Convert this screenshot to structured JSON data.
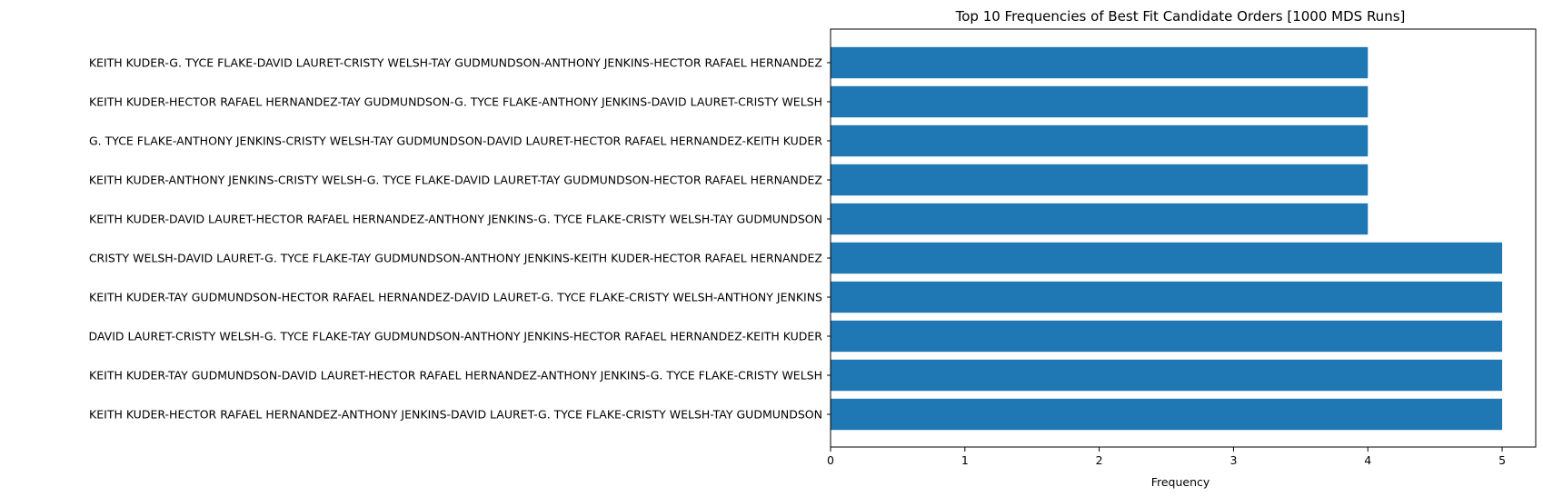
{
  "chart_data": {
    "type": "bar",
    "orientation": "horizontal",
    "title": "Top 10 Frequencies of Best Fit Candidate Orders [1000 MDS Runs]",
    "xlabel": "Frequency",
    "ylabel": "",
    "xlim": [
      0,
      5.25
    ],
    "xticks": [
      0,
      1,
      2,
      3,
      4,
      5
    ],
    "grid": false,
    "bar_color": "#1f77b4",
    "categories": [
      "KEITH KUDER-G. TYCE FLAKE-DAVID LAURET-CRISTY WELSH-TAY GUDMUNDSON-ANTHONY JENKINS-HECTOR RAFAEL HERNANDEZ",
      "KEITH KUDER-HECTOR RAFAEL HERNANDEZ-TAY GUDMUNDSON-G. TYCE FLAKE-ANTHONY JENKINS-DAVID LAURET-CRISTY WELSH",
      "G. TYCE FLAKE-ANTHONY JENKINS-CRISTY WELSH-TAY GUDMUNDSON-DAVID LAURET-HECTOR RAFAEL HERNANDEZ-KEITH KUDER",
      "KEITH KUDER-ANTHONY JENKINS-CRISTY WELSH-G. TYCE FLAKE-DAVID LAURET-TAY GUDMUNDSON-HECTOR RAFAEL HERNANDEZ",
      "KEITH KUDER-DAVID LAURET-HECTOR RAFAEL HERNANDEZ-ANTHONY JENKINS-G. TYCE FLAKE-CRISTY WELSH-TAY GUDMUNDSON",
      "CRISTY WELSH-DAVID LAURET-G. TYCE FLAKE-TAY GUDMUNDSON-ANTHONY JENKINS-KEITH KUDER-HECTOR RAFAEL HERNANDEZ",
      "KEITH KUDER-TAY GUDMUNDSON-HECTOR RAFAEL HERNANDEZ-DAVID LAURET-G. TYCE FLAKE-CRISTY WELSH-ANTHONY JENKINS",
      "DAVID LAURET-CRISTY WELSH-G. TYCE FLAKE-TAY GUDMUNDSON-ANTHONY JENKINS-HECTOR RAFAEL HERNANDEZ-KEITH KUDER",
      "KEITH KUDER-TAY GUDMUNDSON-DAVID LAURET-HECTOR RAFAEL HERNANDEZ-ANTHONY JENKINS-G. TYCE FLAKE-CRISTY WELSH",
      "KEITH KUDER-HECTOR RAFAEL HERNANDEZ-ANTHONY JENKINS-DAVID LAURET-G. TYCE FLAKE-CRISTY WELSH-TAY GUDMUNDSON"
    ],
    "values": [
      4,
      4,
      4,
      4,
      4,
      5,
      5,
      5,
      5,
      5
    ]
  }
}
